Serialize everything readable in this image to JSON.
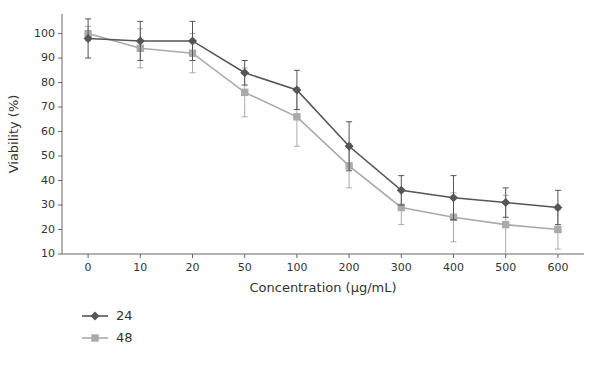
{
  "chart_data": {
    "type": "line",
    "categories": [
      0,
      10,
      20,
      50,
      100,
      200,
      300,
      400,
      500,
      600
    ],
    "series": [
      {
        "name": "24",
        "color": "#555555",
        "marker": "diamond",
        "values": [
          98,
          97,
          97,
          84,
          77,
          54,
          36,
          33,
          31,
          29
        ],
        "errors": [
          8,
          8,
          8,
          5,
          8,
          10,
          6,
          9,
          6,
          7
        ]
      },
      {
        "name": "48",
        "color": "#aaaaaa",
        "marker": "square",
        "values": [
          100,
          94,
          92,
          76,
          66,
          46,
          29,
          25,
          22,
          20
        ],
        "errors": [
          3,
          8,
          8,
          10,
          12,
          9,
          7,
          10,
          12,
          8
        ]
      }
    ],
    "xlabel": "Concentration (μg/mL)",
    "ylabel": "Viability (%)",
    "ylim": [
      10,
      108
    ],
    "yticks": [
      10,
      20,
      30,
      40,
      50,
      60,
      70,
      80,
      90,
      100
    ],
    "grid": false,
    "legend": "below"
  }
}
